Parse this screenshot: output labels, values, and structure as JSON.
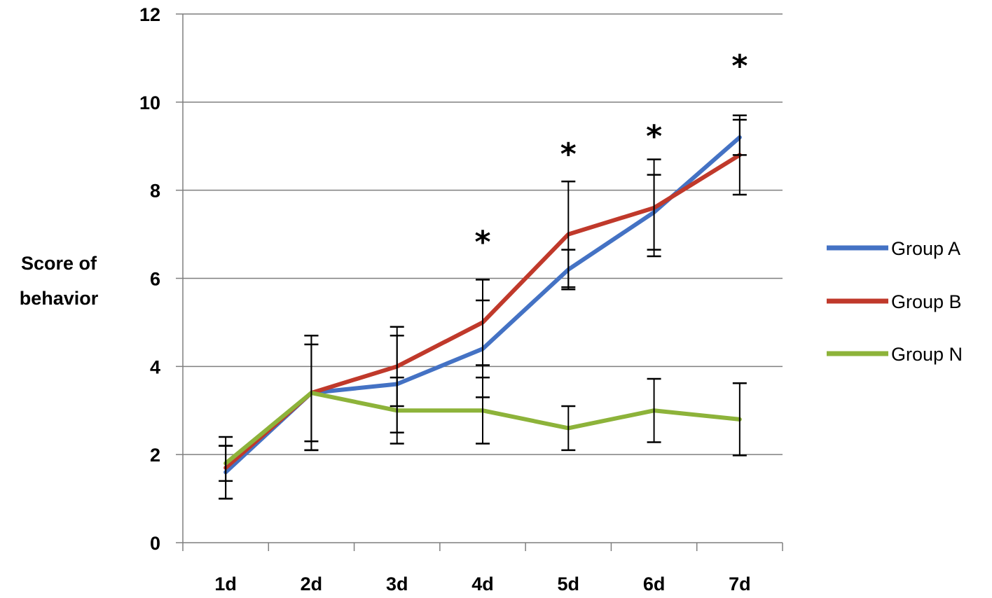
{
  "chart_data": {
    "type": "line",
    "title": "",
    "xlabel": "",
    "ylabel_lines": [
      "Score of",
      "behavior"
    ],
    "ylim": [
      0,
      12
    ],
    "yticks": [
      0,
      2,
      4,
      6,
      8,
      10,
      12
    ],
    "grid": "horizontal",
    "legend": "right",
    "categories": [
      "1d",
      "2d",
      "3d",
      "4d",
      "5d",
      "6d",
      "7d"
    ],
    "series": [
      {
        "name": "Group A",
        "color": "#4472C4",
        "values": [
          1.6,
          3.4,
          3.6,
          4.4,
          6.2,
          7.5,
          9.2
        ],
        "error": [
          0.6,
          1.1,
          1.1,
          1.1,
          0.45,
          0.85,
          0.4
        ]
      },
      {
        "name": "Group B",
        "color": "#C0392B",
        "values": [
          1.7,
          3.4,
          4.0,
          5.0,
          7.0,
          7.6,
          8.8
        ],
        "error": [
          0.7,
          1.3,
          0.9,
          0.97,
          1.2,
          1.1,
          0.9
        ]
      },
      {
        "name": "Group N",
        "color": "#8DB33A",
        "values": [
          1.8,
          3.4,
          3.0,
          3.0,
          2.6,
          3.0,
          2.8
        ],
        "error": [
          0.4,
          1.3,
          0.75,
          0.75,
          0.5,
          0.72,
          0.82
        ]
      }
    ],
    "annotations": [
      {
        "category": "4d",
        "text": "*",
        "y": 7.0
      },
      {
        "category": "5d",
        "text": "*",
        "y": 9.0
      },
      {
        "category": "6d",
        "text": "*",
        "y": 9.4
      },
      {
        "category": "7d",
        "text": "*",
        "y": 11.0
      }
    ]
  }
}
